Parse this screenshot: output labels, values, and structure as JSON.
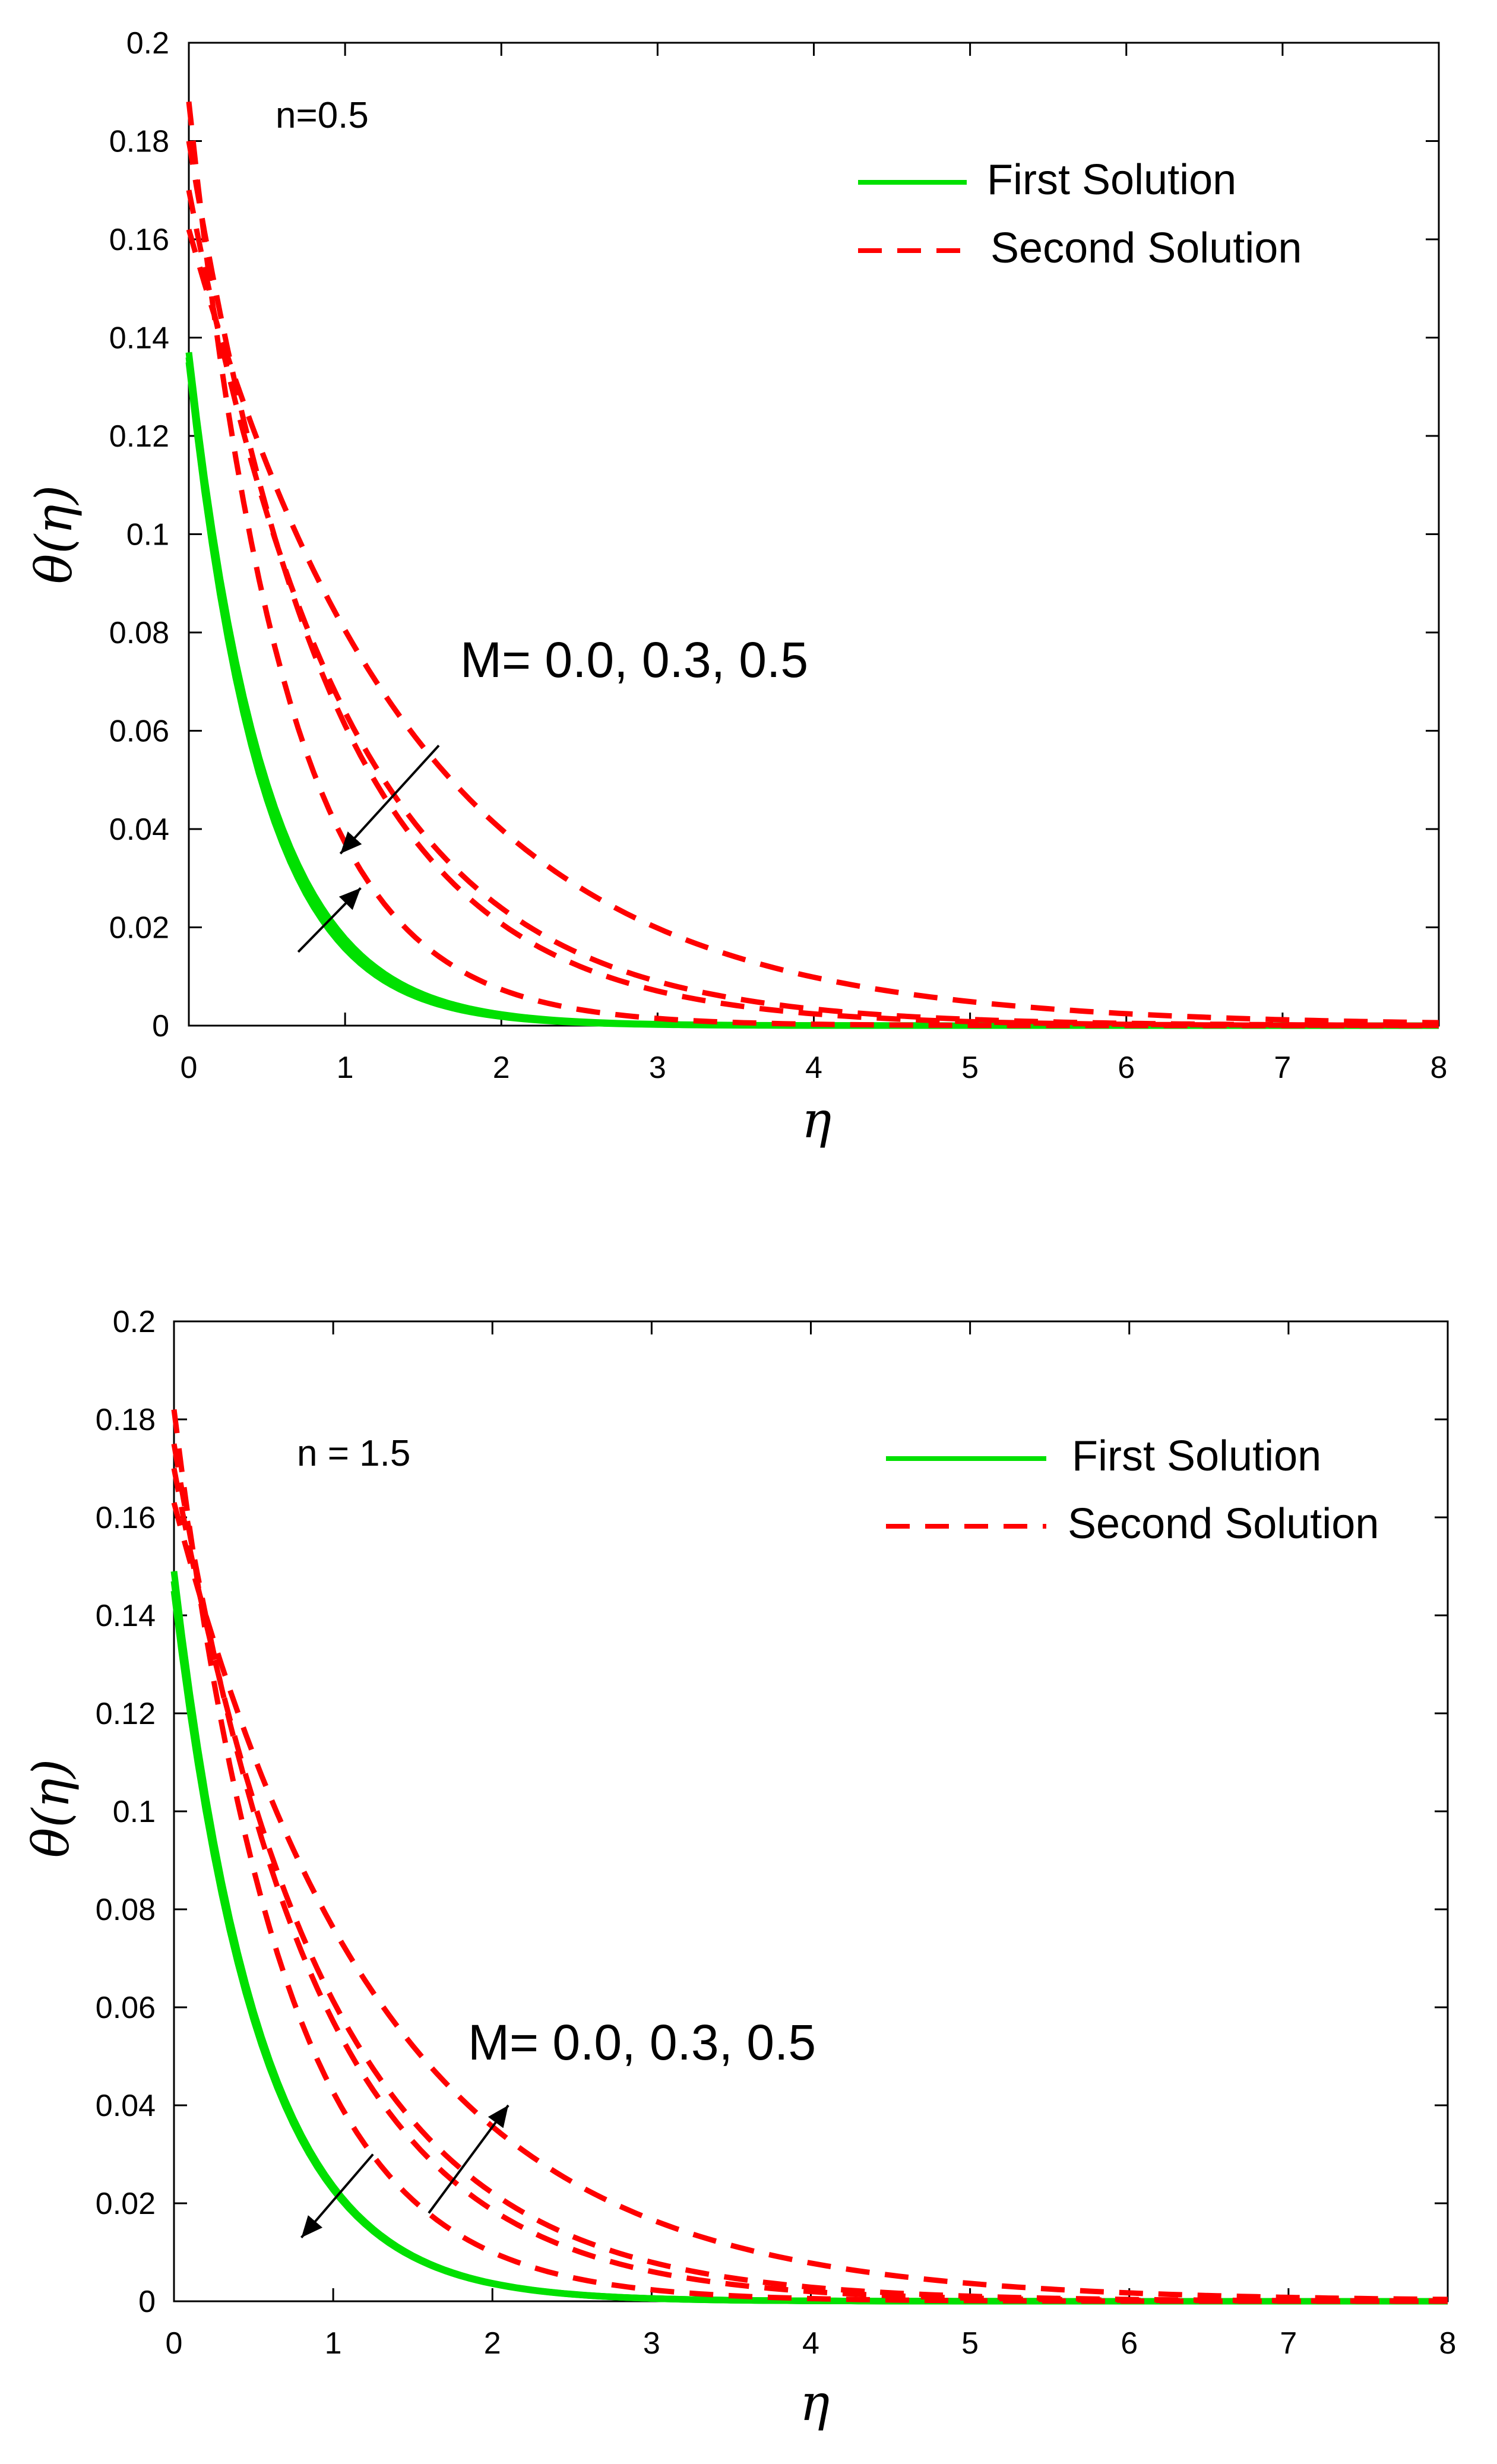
{
  "chart_data": [
    {
      "type": "line",
      "annotation": "n=0.5",
      "xlabel": "η",
      "ylabel": "θ(η)",
      "xlim": [
        0,
        8
      ],
      "ylim": [
        0,
        0.2
      ],
      "xticks": [
        "0",
        "1",
        "2",
        "3",
        "4",
        "5",
        "6",
        "7",
        "8"
      ],
      "yticks": [
        "0",
        "0.02",
        "0.04",
        "0.06",
        "0.08",
        "0.1",
        "0.12",
        "0.14",
        "0.16",
        "0.18",
        "0.2"
      ],
      "m_label": "M= 0.0, 0.3, 0.5",
      "legend": [
        {
          "label": "First Solution",
          "style": "solid",
          "color": "#00e000"
        },
        {
          "label": "Second Solution",
          "style": "dashed",
          "color": "#ff0000"
        }
      ],
      "series": [
        {
          "name": "First Solution",
          "style": "solid",
          "color": "#00e000",
          "y0": 0.137,
          "decay": 2.05
        },
        {
          "name": "First Solution",
          "style": "solid",
          "color": "#00e000",
          "y0": 0.136,
          "decay": 2.1
        },
        {
          "name": "First Solution",
          "style": "solid",
          "color": "#00e000",
          "y0": 0.135,
          "decay": 2.15
        },
        {
          "name": "Second Solution",
          "style": "dashed",
          "color": "#ff0000",
          "y0": 0.188,
          "decay": 1.62
        },
        {
          "name": "Second Solution",
          "style": "dashed",
          "color": "#ff0000",
          "y0": 0.18,
          "decay": 1.08
        },
        {
          "name": "Second Solution",
          "style": "dashed",
          "color": "#ff0000",
          "y0": 0.17,
          "decay": 0.98
        },
        {
          "name": "Second Solution",
          "style": "dashed",
          "color": "#ff0000",
          "y0": 0.162,
          "decay": 0.7
        }
      ],
      "arrows": [
        {
          "from": [
            1.6,
            0.057
          ],
          "to": [
            0.97,
            0.035
          ]
        },
        {
          "from": [
            0.7,
            0.015
          ],
          "to": [
            1.1,
            0.028
          ]
        }
      ]
    },
    {
      "type": "line",
      "annotation": "n = 1.5",
      "xlabel": "η",
      "ylabel": "θ(η)",
      "xlim": [
        0,
        8
      ],
      "ylim": [
        0,
        0.2
      ],
      "xticks": [
        "0",
        "1",
        "2",
        "3",
        "4",
        "5",
        "6",
        "7",
        "8"
      ],
      "yticks": [
        "0",
        "0.02",
        "0.04",
        "0.06",
        "0.08",
        "0.1",
        "0.12",
        "0.14",
        "0.16",
        "0.18",
        "0.2"
      ],
      "m_label": "M= 0.0, 0.3, 0.5",
      "legend": [
        {
          "label": "First Solution",
          "style": "solid",
          "color": "#00e000"
        },
        {
          "label": "Second Solution",
          "style": "dashed",
          "color": "#ff0000"
        }
      ],
      "series": [
        {
          "name": "First Solution",
          "style": "solid",
          "color": "#00e000",
          "y0": 0.149,
          "decay": 1.85
        },
        {
          "name": "First Solution",
          "style": "solid",
          "color": "#00e000",
          "y0": 0.147,
          "decay": 1.85
        },
        {
          "name": "First Solution",
          "style": "solid",
          "color": "#00e000",
          "y0": 0.145,
          "decay": 1.85
        },
        {
          "name": "Second Solution",
          "style": "dashed",
          "color": "#ff0000",
          "y0": 0.182,
          "decay": 1.45
        },
        {
          "name": "Second Solution",
          "style": "dashed",
          "color": "#ff0000",
          "y0": 0.175,
          "decay": 1.12
        },
        {
          "name": "Second Solution",
          "style": "dashed",
          "color": "#ff0000",
          "y0": 0.17,
          "decay": 1.02
        },
        {
          "name": "Second Solution",
          "style": "dashed",
          "color": "#ff0000",
          "y0": 0.163,
          "decay": 0.76
        }
      ],
      "arrows": [
        {
          "from": [
            1.25,
            0.03
          ],
          "to": [
            0.8,
            0.013
          ]
        },
        {
          "from": [
            1.6,
            0.018
          ],
          "to": [
            2.1,
            0.04
          ]
        }
      ]
    }
  ]
}
